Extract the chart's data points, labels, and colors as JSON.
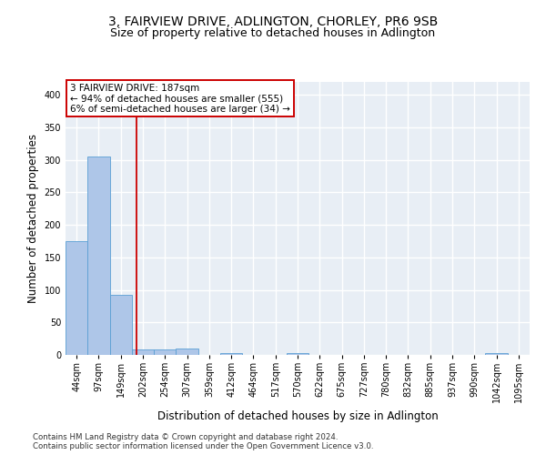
{
  "title": "3, FAIRVIEW DRIVE, ADLINGTON, CHORLEY, PR6 9SB",
  "subtitle": "Size of property relative to detached houses in Adlington",
  "xlabel": "Distribution of detached houses by size in Adlington",
  "ylabel": "Number of detached properties",
  "bar_color": "#aec6e8",
  "bar_edge_color": "#5a9fd4",
  "categories": [
    "44sqm",
    "97sqm",
    "149sqm",
    "202sqm",
    "254sqm",
    "307sqm",
    "359sqm",
    "412sqm",
    "464sqm",
    "517sqm",
    "570sqm",
    "622sqm",
    "675sqm",
    "727sqm",
    "780sqm",
    "832sqm",
    "885sqm",
    "937sqm",
    "990sqm",
    "1042sqm",
    "1095sqm"
  ],
  "values": [
    175,
    305,
    93,
    8,
    8,
    10,
    0,
    3,
    0,
    0,
    3,
    0,
    0,
    0,
    0,
    0,
    0,
    0,
    0,
    3,
    0
  ],
  "ylim": [
    0,
    420
  ],
  "yticks": [
    0,
    50,
    100,
    150,
    200,
    250,
    300,
    350,
    400
  ],
  "vline_color": "#cc0000",
  "annotation_text": "3 FAIRVIEW DRIVE: 187sqm\n← 94% of detached houses are smaller (555)\n6% of semi-detached houses are larger (34) →",
  "annotation_box_color": "white",
  "annotation_box_edge": "#cc0000",
  "footer_line1": "Contains HM Land Registry data © Crown copyright and database right 2024.",
  "footer_line2": "Contains public sector information licensed under the Open Government Licence v3.0.",
  "background_color": "#e8eef5",
  "grid_color": "white",
  "title_fontsize": 10,
  "subtitle_fontsize": 9,
  "tick_fontsize": 7,
  "ylabel_fontsize": 8.5,
  "xlabel_fontsize": 8.5,
  "footer_fontsize": 6.2
}
